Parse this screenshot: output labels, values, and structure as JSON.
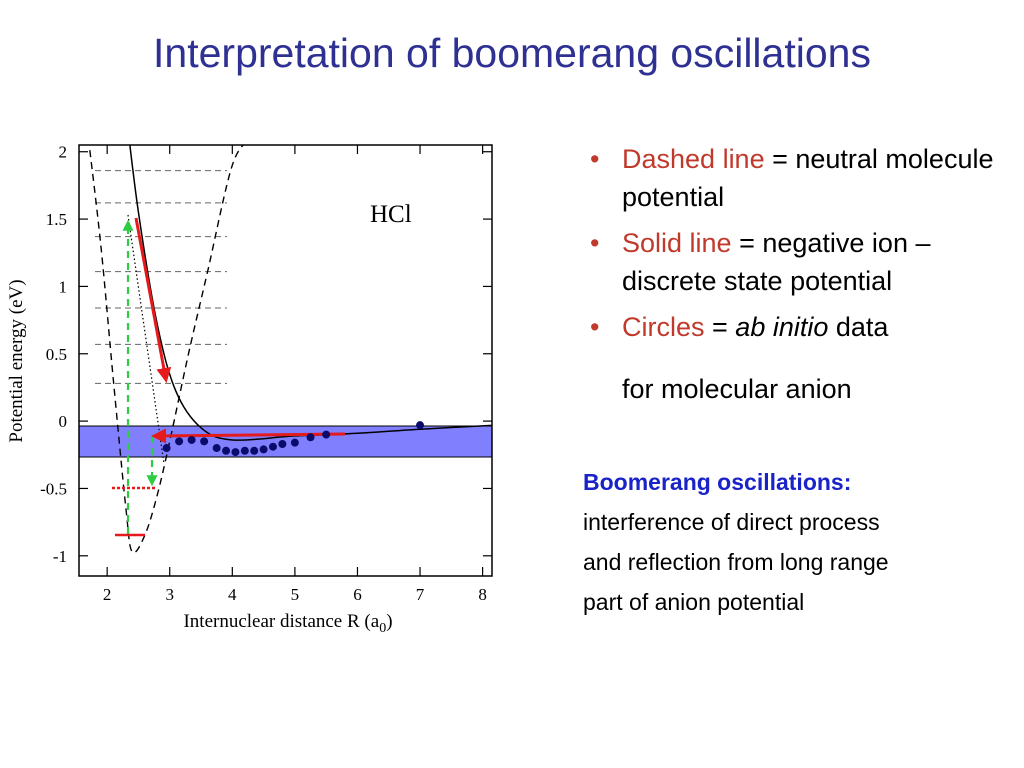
{
  "slide": {
    "title": "Interpretation of boomerang oscillations"
  },
  "bullets": [
    {
      "highlight": "Dashed line",
      "rest": " = neutral molecule potential"
    },
    {
      "highlight": "Solid line",
      "rest": " = negative ion – discrete state potential"
    },
    {
      "highlight": "Circles",
      "rest_plain": " = ",
      "rest_italic": "ab initio",
      "rest_end": " data"
    }
  ],
  "bullet_continuation": "for molecular anion",
  "note": {
    "heading": "Boomerang oscillations:",
    "lines": [
      "interference of direct process",
      "and reflection from long range",
      "part of anion potential"
    ]
  },
  "colors": {
    "title": "#2E3192",
    "highlight": "#C0392B",
    "note_heading": "#1a23c8",
    "band_fill": "#8080ff",
    "arrow_red": "#e41a1c",
    "arrow_green": "#2ecc40"
  },
  "chart_data": {
    "type": "line",
    "label": "HCl",
    "xlabel_main": "Internuclear distance R (a",
    "xlabel_sub": "0",
    "xlabel_end": ")",
    "ylabel": "Potential energy (eV)",
    "xlim": [
      1.55,
      8.15
    ],
    "ylim": [
      -1.15,
      2.05
    ],
    "xticks": [
      2,
      3,
      4,
      5,
      6,
      7,
      8
    ],
    "yticks": [
      2,
      1.5,
      1,
      0.5,
      0,
      -0.5,
      -1
    ],
    "ytick_labels": [
      "2",
      "1.5",
      "1",
      "0.5",
      "0",
      "-0.5",
      "-1"
    ],
    "neutral_potential": {
      "style": "dashed",
      "x": [
        1.7,
        1.9,
        2.1,
        2.3,
        2.4,
        2.6,
        2.8,
        3.0,
        3.3,
        3.6,
        4.0,
        4.3
      ],
      "y": [
        2.1,
        1.3,
        0.3,
        -0.65,
        -0.97,
        -0.85,
        -0.55,
        -0.15,
        0.5,
        1.1,
        1.9,
        2.1
      ]
    },
    "vibrational_levels": [
      1.86,
      1.62,
      1.37,
      1.11,
      0.84,
      0.57,
      0.28
    ],
    "anion_potential": {
      "style": "solid",
      "x": [
        2.3,
        2.5,
        2.8,
        3.1,
        3.5,
        4.0,
        5.0,
        6.0,
        7.0,
        8.2
      ],
      "y": [
        2.3,
        1.55,
        0.72,
        0.22,
        -0.05,
        -0.14,
        -0.11,
        -0.09,
        -0.06,
        -0.03
      ]
    },
    "ab_initio": {
      "x": [
        2.95,
        3.15,
        3.35,
        3.55,
        3.75,
        3.9,
        4.05,
        4.2,
        4.35,
        4.5,
        4.65,
        4.8,
        5.0,
        5.25,
        5.5,
        7.0
      ],
      "y": [
        -0.2,
        -0.15,
        -0.14,
        -0.15,
        -0.2,
        -0.22,
        -0.23,
        -0.22,
        -0.22,
        -0.21,
        -0.19,
        -0.17,
        -0.16,
        -0.12,
        -0.1,
        -0.03
      ]
    },
    "band": {
      "y_from": -0.23,
      "y_to": 0.0
    }
  }
}
